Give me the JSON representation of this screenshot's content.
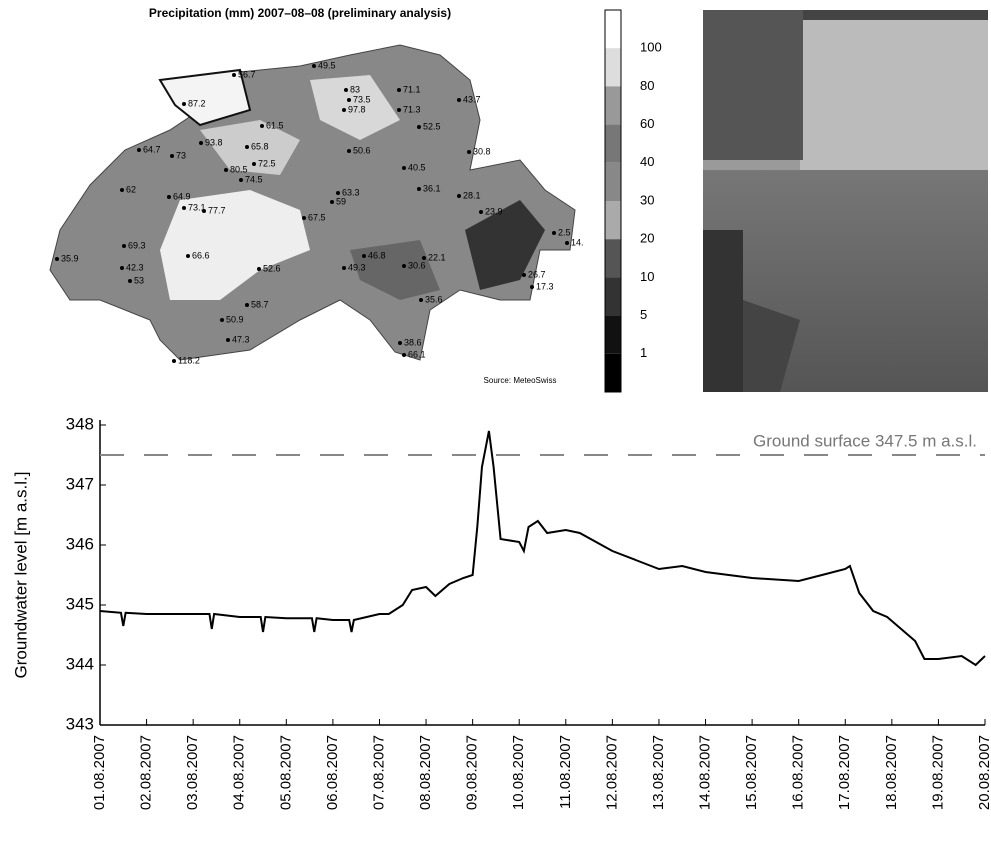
{
  "map": {
    "title": "Precipitation (mm) 2007–08–08 (preliminary analysis)",
    "source": "Source: MeteoSwiss",
    "colorbar_labels": [
      100,
      80,
      60,
      40,
      30,
      20,
      10,
      5,
      1
    ],
    "stations": [
      "56.7",
      "49.5",
      "87.2",
      "83",
      "73.5",
      "97.8",
      "71.1",
      "71.3",
      "61.5",
      "93.8",
      "73",
      "64.7",
      "65.8",
      "52.5",
      "43.7",
      "30.8",
      "50.6",
      "72.5",
      "80.5",
      "74.5",
      "40.5",
      "62",
      "64.9",
      "73.1",
      "77.7",
      "63.3",
      "36.1",
      "28.1",
      "23.9",
      "67.5",
      "59",
      "69.3",
      "66.6",
      "52.6",
      "46.8",
      "30.6",
      "22.1",
      "49.3",
      "35.9",
      "42.3",
      "53",
      "58.7",
      "26.7",
      "17.3",
      "50.9",
      "47.3",
      "35.6",
      "118.2",
      "38.6",
      "66.1",
      "2.5",
      "14."
    ]
  },
  "chart_data": {
    "type": "line",
    "y_label": "Groundwater level [m a.s.l.]",
    "reference": {
      "value": 347.5,
      "label": "Ground surface 347.5 m a.s.l."
    },
    "xlim": [
      1,
      20
    ],
    "ylim": [
      343,
      348
    ],
    "yticks": [
      343,
      344,
      345,
      346,
      347,
      348
    ],
    "xticks": [
      {
        "value": 1,
        "label": "01.08.2007"
      },
      {
        "value": 2,
        "label": "02.08.2007"
      },
      {
        "value": 3,
        "label": "03.08.2007"
      },
      {
        "value": 4,
        "label": "04.08.2007"
      },
      {
        "value": 5,
        "label": "05.08.2007"
      },
      {
        "value": 6,
        "label": "06.08.2007"
      },
      {
        "value": 7,
        "label": "07.08.2007"
      },
      {
        "value": 8,
        "label": "08.08.2007"
      },
      {
        "value": 9,
        "label": "09.08.2007"
      },
      {
        "value": 10,
        "label": "10.08.2007"
      },
      {
        "value": 11,
        "label": "11.08.2007"
      },
      {
        "value": 12,
        "label": "12.08.2007"
      },
      {
        "value": 13,
        "label": "13.08.2007"
      },
      {
        "value": 14,
        "label": "14.08.2007"
      },
      {
        "value": 15,
        "label": "15.08.2007"
      },
      {
        "value": 16,
        "label": "16.08.2007"
      },
      {
        "value": 17,
        "label": "17.08.2007"
      },
      {
        "value": 18,
        "label": "18.08.2007"
      },
      {
        "value": 19,
        "label": "19.08.2007"
      },
      {
        "value": 20,
        "label": "20.08.2007"
      }
    ],
    "x": [
      1,
      1.45,
      1.5,
      1.55,
      2,
      3,
      3.35,
      3.4,
      3.45,
      4,
      4.45,
      4.5,
      4.55,
      5,
      5.55,
      5.6,
      5.65,
      6,
      6.35,
      6.4,
      6.45,
      7,
      7.2,
      7.5,
      7.7,
      8,
      8.2,
      8.5,
      8.8,
      9,
      9.1,
      9.2,
      9.35,
      9.45,
      9.6,
      10,
      10.1,
      10.2,
      10.4,
      10.6,
      11,
      11.3,
      12,
      12.5,
      13,
      13.5,
      14,
      15,
      16,
      16.5,
      17,
      17.1,
      17.3,
      17.6,
      17.9,
      18.2,
      18.5,
      18.7,
      19,
      19.5,
      19.8,
      20
    ],
    "series": [
      {
        "name": "Groundwater level",
        "color": "#000000",
        "values": [
          344.9,
          344.87,
          344.65,
          344.87,
          344.85,
          344.85,
          344.85,
          344.6,
          344.85,
          344.8,
          344.8,
          344.55,
          344.8,
          344.78,
          344.78,
          344.55,
          344.78,
          344.75,
          344.75,
          344.55,
          344.75,
          344.85,
          344.85,
          345.0,
          345.25,
          345.3,
          345.15,
          345.35,
          345.45,
          345.5,
          346.3,
          347.3,
          347.9,
          347.3,
          346.1,
          346.05,
          345.9,
          346.3,
          346.4,
          346.2,
          346.25,
          346.2,
          345.9,
          345.75,
          345.6,
          345.65,
          345.55,
          345.45,
          345.4,
          345.5,
          345.6,
          345.65,
          345.2,
          344.9,
          344.8,
          344.6,
          344.4,
          344.1,
          344.1,
          344.15,
          344.0,
          344.15
        ]
      }
    ]
  }
}
